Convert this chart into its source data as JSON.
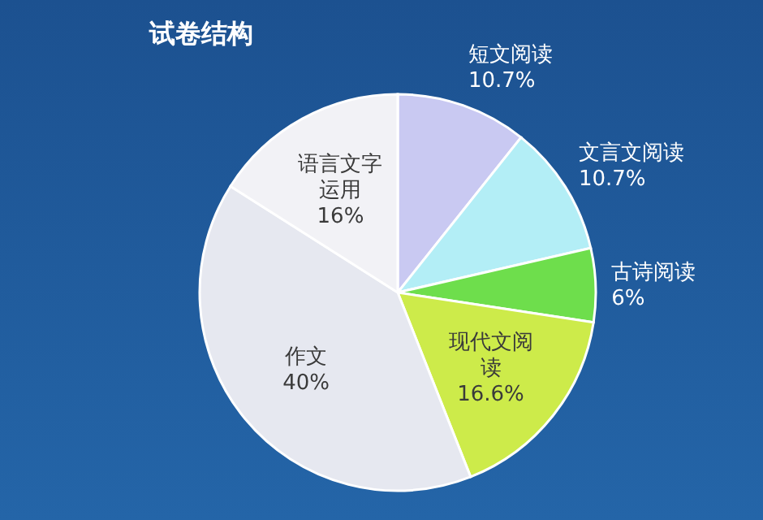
{
  "chart_data": {
    "type": "pie",
    "title": "试卷结构",
    "categories": [
      "短文阅读",
      "文言文阅读",
      "古诗阅读",
      "现代文阅读",
      "作文",
      "语言文字运用"
    ],
    "values": [
      10.7,
      10.7,
      6,
      16.6,
      40,
      16
    ],
    "value_labels": [
      "10.7%",
      "10.7%",
      "6%",
      "16.6%",
      "40%",
      "16%"
    ],
    "colors": [
      "#c9c9f2",
      "#b3eef6",
      "#6ede4c",
      "#cdeb4a",
      "#e6e8f0",
      "#f2f2f6"
    ]
  }
}
